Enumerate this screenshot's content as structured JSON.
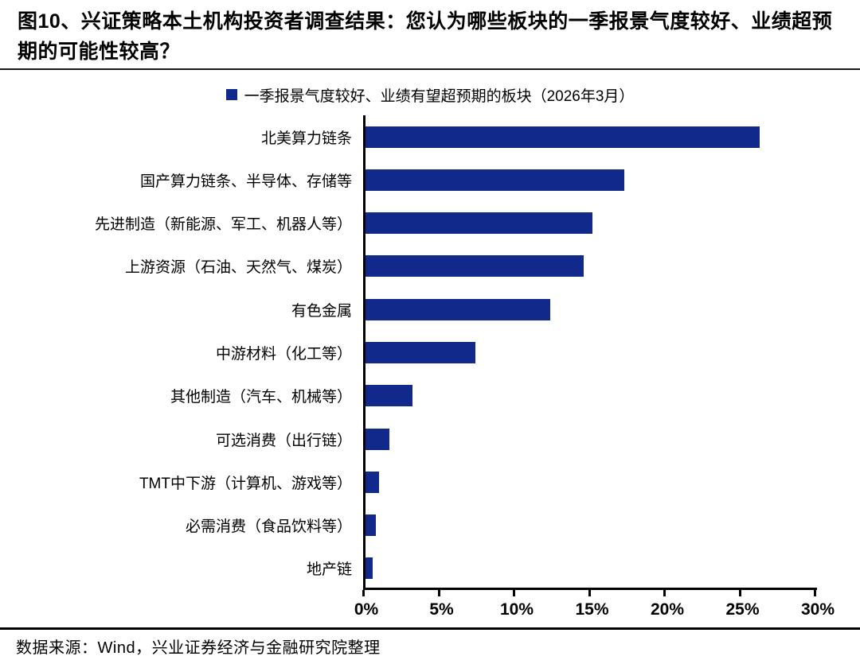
{
  "title": "图10、兴证策略本土机构投资者调查结果：您认为哪些板块的一季报景气度较好、业绩超预期的可能性较高？",
  "legend": {
    "label": "一季报景气度较好、业绩有望超预期的板块（2026年3月）"
  },
  "footer": {
    "source": "数据来源：Wind，兴业证券经济与金融研究院整理"
  },
  "colors": {
    "bar": "#12298C",
    "axis": "#000000",
    "text": "#000000",
    "divider": "#1A1A1A"
  },
  "chart_data": {
    "type": "bar",
    "orientation": "horizontal",
    "title": "一季报景气度较好、业绩有望超预期的板块（2026年3月）",
    "categories": [
      "北美算力链条",
      "国产算力链条、半导体、存储等",
      "先进制造（新能源、军工、机器人等）",
      "上游资源（石油、天然气、煤炭）",
      "有色金属",
      "中游材料（化工等）",
      "其他制造（汽车、机械等）",
      "可选消费（出行链）",
      "TMT中下游（计算机、游戏等）",
      "必需消费（食品饮料等）",
      "地产链"
    ],
    "values": [
      26.2,
      17.2,
      15.1,
      14.5,
      12.3,
      7.3,
      3.1,
      1.6,
      0.9,
      0.7,
      0.5
    ],
    "unit": "%",
    "xlabel": "",
    "ylabel": "",
    "xlim": [
      0,
      30
    ],
    "xticks": [
      "0%",
      "5%",
      "10%",
      "15%",
      "20%",
      "25%",
      "30%"
    ],
    "grid": false,
    "legend_position": "top-center",
    "bar_color": "#12298C"
  }
}
